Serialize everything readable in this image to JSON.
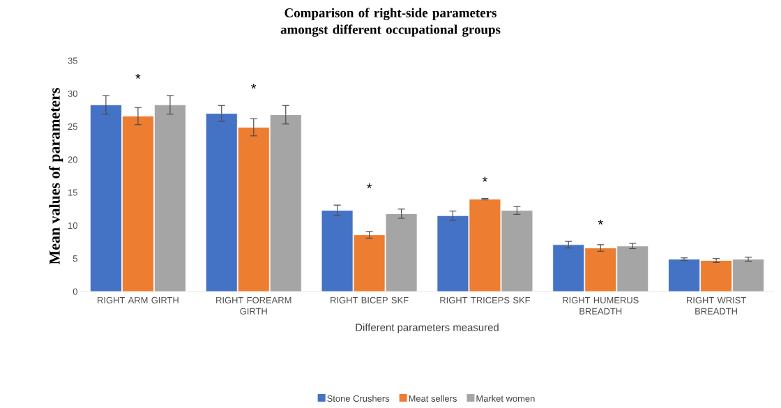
{
  "chart_data": {
    "type": "bar",
    "title": "Comparison of right-side parameters amongst different occupational groups",
    "xlabel": "Different parameters measured",
    "ylabel": "Mean values of parameters",
    "categories": [
      "RIGHT ARM GIRTH",
      "RIGHT FOREARM GIRTH",
      "RIGHT BICEP SKF",
      "RIGHT TRICEPS SKF",
      "RIGHT HUMERUS BREADTH",
      "RIGHT WRIST BREADTH"
    ],
    "series": [
      {
        "name": "Stone Crushers",
        "color": "#4472c4",
        "values": [
          28.3,
          27.0,
          12.3,
          11.5,
          7.1,
          4.9
        ],
        "errors": [
          1.4,
          1.2,
          0.8,
          0.7,
          0.5,
          0.2
        ]
      },
      {
        "name": "Meat sellers",
        "color": "#ed7d31",
        "values": [
          26.6,
          24.9,
          8.6,
          14.0,
          6.6,
          4.7
        ],
        "errors": [
          1.3,
          1.3,
          0.5,
          0.1,
          0.5,
          0.3
        ]
      },
      {
        "name": "Market women",
        "color": "#a5a5a5",
        "values": [
          28.3,
          26.8,
          11.8,
          12.3,
          6.9,
          4.9
        ],
        "errors": [
          1.4,
          1.4,
          0.7,
          0.6,
          0.4,
          0.3
        ]
      }
    ],
    "ylim": [
      0,
      35
    ],
    "yticks": [
      0,
      5,
      10,
      15,
      20,
      25,
      30,
      35
    ],
    "annotations": [
      "*",
      "*",
      "*",
      "*",
      "*"
    ],
    "grid": false,
    "legend": "bottom"
  }
}
